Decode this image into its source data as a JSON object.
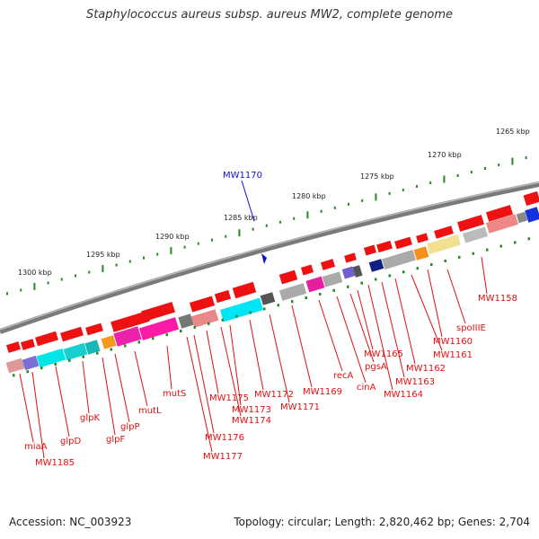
{
  "title": "Staphylococcus aureus subsp. aureus MW2, complete genome",
  "accession_text": "Accession: NC_003923",
  "summary_text": "Topology: circular; Length: 2,820,462 bp; Genes: 2,704",
  "scale_labels": [
    "1265 kbp",
    "1270 kbp",
    "1275 kbp",
    "1280 kbp",
    "1285 kbp",
    "1290 kbp",
    "1295 kbp",
    "1300 kbp"
  ],
  "marker_label": "MW1170",
  "colors": {
    "label": "#e01010",
    "marker": "#1010d0",
    "tick": "#228b22",
    "ring": "#777777",
    "gene_forward": "#ee1111"
  },
  "gene_labels": [
    {
      "name": "MW1158"
    },
    {
      "name": "spoIIIE"
    },
    {
      "name": "MW1160"
    },
    {
      "name": "MW1161"
    },
    {
      "name": "MW1162"
    },
    {
      "name": "MW1163"
    },
    {
      "name": "MW1164"
    },
    {
      "name": "MW1165"
    },
    {
      "name": "pgsA"
    },
    {
      "name": "cinA"
    },
    {
      "name": "recA"
    },
    {
      "name": "MW1169"
    },
    {
      "name": "MW1171"
    },
    {
      "name": "MW1172"
    },
    {
      "name": "MW1173"
    },
    {
      "name": "MW1174"
    },
    {
      "name": "MW1175"
    },
    {
      "name": "MW1176"
    },
    {
      "name": "MW1177"
    },
    {
      "name": "mutS"
    },
    {
      "name": "mutL"
    },
    {
      "name": "glpP"
    },
    {
      "name": "glpF"
    },
    {
      "name": "glpK"
    },
    {
      "name": "glpD"
    },
    {
      "name": "MW1185"
    },
    {
      "name": "miaA"
    }
  ]
}
